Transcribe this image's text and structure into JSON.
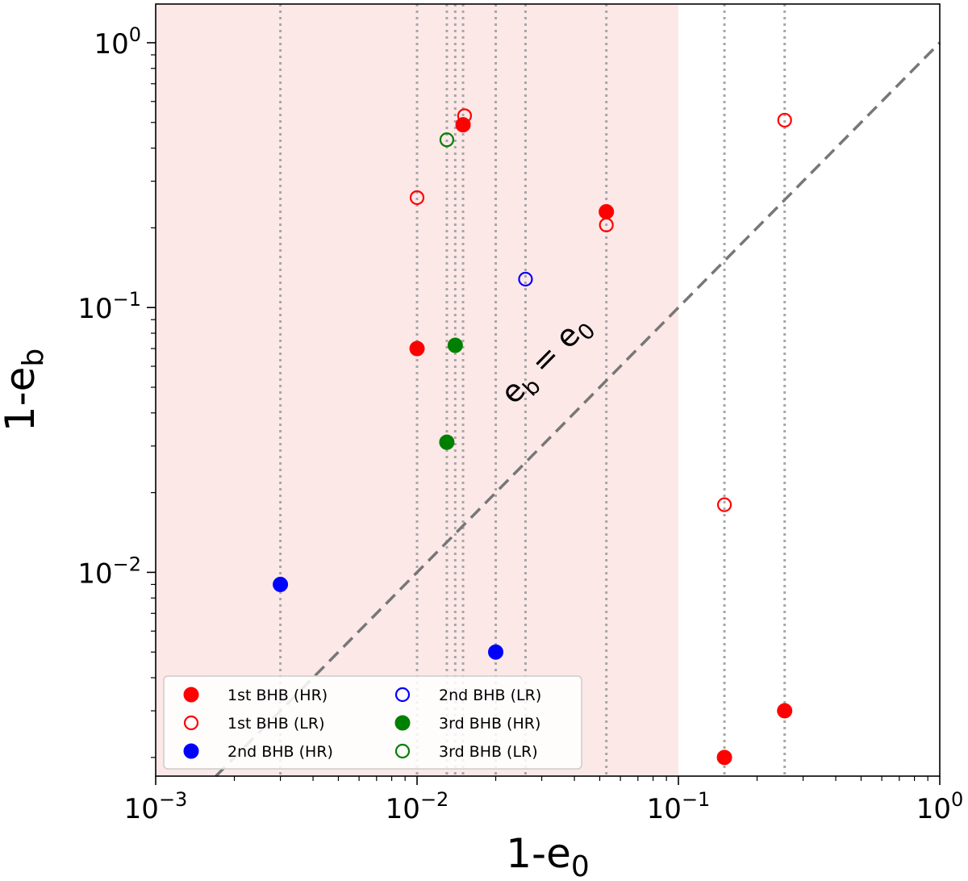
{
  "chart_data": {
    "type": "scatter",
    "x_scale": "log",
    "y_scale": "log",
    "xlim": [
      0.001,
      1
    ],
    "ylim": [
      0.0017,
      1.4
    ],
    "xlabel": "1-e",
    "xlabel_sub": "0",
    "ylabel": "1-e",
    "ylabel_sub": "b",
    "x_ticks": [
      {
        "value": 0.001,
        "base": "10",
        "exp": "−3"
      },
      {
        "value": 0.01,
        "base": "10",
        "exp": "−2"
      },
      {
        "value": 0.1,
        "base": "10",
        "exp": "−1"
      },
      {
        "value": 1,
        "base": "10",
        "exp": "0"
      }
    ],
    "y_ticks": [
      {
        "value": 0.01,
        "base": "10",
        "exp": "−2"
      },
      {
        "value": 0.1,
        "base": "10",
        "exp": "−1"
      },
      {
        "value": 1,
        "base": "10",
        "exp": "0"
      }
    ],
    "shaded_region": {
      "x_from": 0.001,
      "x_to": 0.1,
      "color": "#fde8e8"
    },
    "vertical_lines_x": [
      0.003,
      0.01,
      0.013,
      0.014,
      0.015,
      0.02,
      0.026,
      0.053,
      0.15,
      0.255
    ],
    "diagonal": {
      "label_base": "e",
      "label_base_sub": "b",
      "label_eq": " = ",
      "label_rhs": "e",
      "label_rhs_sub": "0",
      "color": "#777777"
    },
    "series": [
      {
        "name": "1st BHB (HR)",
        "color": "#ff0000",
        "filled": true,
        "points": [
          [
            0.015,
            0.49
          ],
          [
            0.053,
            0.23
          ],
          [
            0.01,
            0.07
          ],
          [
            0.15,
            0.002
          ],
          [
            0.255,
            0.003
          ]
        ]
      },
      {
        "name": "1st BHB (LR)",
        "color": "#ff0000",
        "filled": false,
        "points": [
          [
            0.0152,
            0.53
          ],
          [
            0.01,
            0.26
          ],
          [
            0.053,
            0.205
          ],
          [
            0.15,
            0.018
          ],
          [
            0.255,
            0.51
          ]
        ]
      },
      {
        "name": "2nd BHB (HR)",
        "color": "#0000ff",
        "filled": true,
        "points": [
          [
            0.003,
            0.009
          ],
          [
            0.02,
            0.005
          ]
        ]
      },
      {
        "name": "2nd BHB (LR)",
        "color": "#0000ff",
        "filled": false,
        "points": [
          [
            0.026,
            0.128
          ]
        ]
      },
      {
        "name": "3rd BHB (HR)",
        "color": "#008000",
        "filled": true,
        "points": [
          [
            0.014,
            0.072
          ],
          [
            0.013,
            0.031
          ]
        ]
      },
      {
        "name": "3rd BHB (LR)",
        "color": "#008000",
        "filled": false,
        "points": [
          [
            0.013,
            0.43
          ]
        ]
      }
    ],
    "legend": {
      "placement": "bottom-left",
      "columns": [
        [
          "1st BHB (HR)",
          "1st BHB (LR)",
          "2nd BHB (HR)"
        ],
        [
          "2nd BHB (LR)",
          "3rd BHB (HR)",
          "3rd BHB (LR)"
        ]
      ]
    }
  }
}
